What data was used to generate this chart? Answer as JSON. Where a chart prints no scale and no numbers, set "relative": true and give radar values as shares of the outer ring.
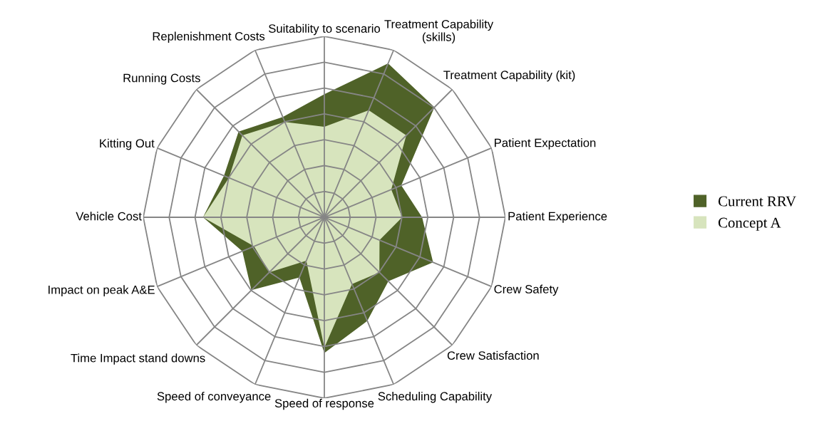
{
  "chart_data": {
    "type": "radar",
    "relative": true,
    "grid": true,
    "legend": "right",
    "categories": [
      "Suitability to scenario",
      "Treatment Capability\n(skills)",
      "Treatment Capability (kit)",
      "Patient Expectation",
      "Patient Experience",
      "Crew Safety",
      "Crew Satisfaction",
      "Scheduling Capability",
      "Speed of response",
      "Speed of conveyance",
      "Time Impact stand downs",
      "Impact on peak A&E",
      "Vehicle Cost",
      "Kitting Out",
      "Running Costs",
      "Replenishment Costs"
    ],
    "series": [
      {
        "name": "Current RRV",
        "color": "#4f6228",
        "values": [
          0.68,
          0.92,
          0.86,
          0.46,
          0.54,
          0.65,
          0.5,
          0.62,
          0.75,
          0.36,
          0.57,
          0.49,
          0.67,
          0.6,
          0.67,
          0.6
        ]
      },
      {
        "name": "Concept A",
        "color": "#d7e4bd",
        "values": [
          0.5,
          0.64,
          0.64,
          0.4,
          0.43,
          0.33,
          0.43,
          0.4,
          0.72,
          0.26,
          0.43,
          0.42,
          0.67,
          0.57,
          0.64,
          0.57
        ]
      }
    ]
  }
}
